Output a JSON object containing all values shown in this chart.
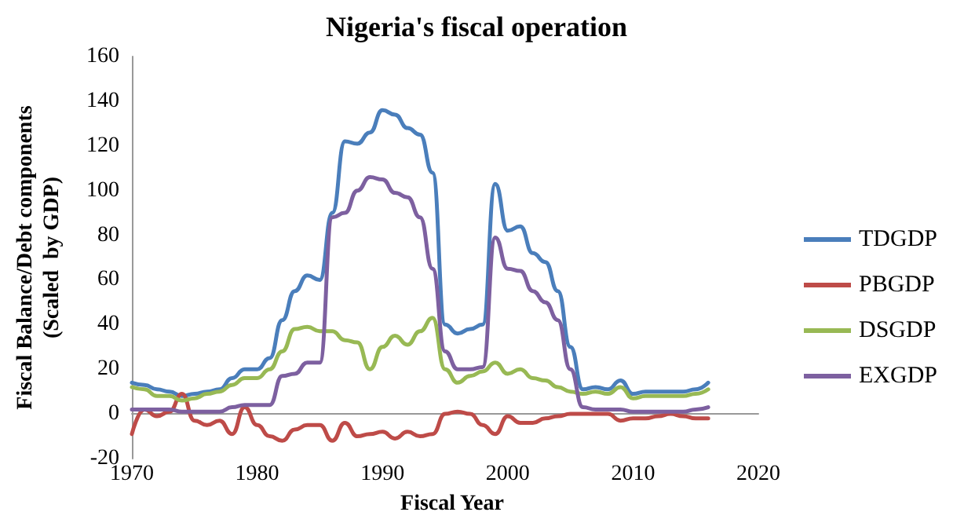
{
  "chart_data": {
    "type": "line",
    "title": "Nigeria's fiscal operation",
    "xlabel": "Fiscal Year",
    "ylabel": "Fiscal Balance/Debt components\n(Scaled  by GDP)",
    "x": [
      1970,
      1971,
      1972,
      1973,
      1974,
      1975,
      1976,
      1977,
      1978,
      1979,
      1980,
      1981,
      1982,
      1983,
      1984,
      1985,
      1986,
      1987,
      1988,
      1989,
      1990,
      1991,
      1992,
      1993,
      1994,
      1995,
      1996,
      1997,
      1998,
      1999,
      2000,
      2001,
      2002,
      2003,
      2004,
      2005,
      2006,
      2007,
      2008,
      2009,
      2010,
      2011,
      2012,
      2013,
      2014,
      2015,
      2016
    ],
    "series": [
      {
        "name": "TDGDP",
        "color": "#4a7ebb",
        "values": [
          14,
          13,
          11,
          10,
          8,
          9,
          10,
          11,
          16,
          20,
          20,
          25,
          42,
          55,
          62,
          60,
          90,
          122,
          121,
          126,
          136,
          134,
          128,
          125,
          108,
          40,
          36,
          38,
          40,
          103,
          82,
          84,
          72,
          68,
          55,
          30,
          11,
          12,
          11,
          15,
          9,
          10,
          10,
          10,
          10,
          11,
          14
        ]
      },
      {
        "name": "PBGDP",
        "color": "#be4b48",
        "values": [
          -9,
          2,
          -1,
          1,
          9,
          -3,
          -5,
          -3,
          -9,
          3,
          -5,
          -10,
          -12,
          -7,
          -5,
          -5,
          -12,
          -4,
          -10,
          -9,
          -8,
          -11,
          -8,
          -10,
          -9,
          0,
          1,
          0,
          -5,
          -9,
          -1,
          -4,
          -4,
          -2,
          -1,
          0,
          0,
          0,
          0,
          -3,
          -2,
          -2,
          -1,
          0,
          -1,
          -2,
          -2
        ]
      },
      {
        "name": "DSGDP",
        "color": "#98b954",
        "values": [
          12,
          11,
          8,
          8,
          6,
          7,
          9,
          10,
          13,
          16,
          16,
          20,
          28,
          38,
          39,
          37,
          37,
          33,
          32,
          20,
          30,
          35,
          31,
          37,
          43,
          20,
          14,
          17,
          19,
          23,
          18,
          20,
          16,
          15,
          12,
          10,
          9,
          10,
          9,
          12,
          7,
          8,
          8,
          8,
          8,
          9,
          11
        ]
      },
      {
        "name": "EXGDP",
        "color": "#7d60a0",
        "values": [
          2,
          2,
          2,
          2,
          1,
          1,
          1,
          1,
          3,
          4,
          4,
          4,
          17,
          18,
          23,
          23,
          88,
          90,
          100,
          106,
          105,
          99,
          97,
          88,
          65,
          28,
          20,
          20,
          21,
          79,
          65,
          64,
          55,
          50,
          42,
          20,
          3,
          2,
          2,
          2,
          1,
          1,
          1,
          1,
          1,
          2,
          3
        ]
      }
    ],
    "xlim": [
      1970,
      2020
    ],
    "xticks": [
      1970,
      1980,
      1990,
      2000,
      2010,
      2020
    ],
    "ylim": [
      -20,
      160
    ],
    "yticks": [
      -20,
      0,
      20,
      40,
      60,
      80,
      100,
      120,
      140,
      160
    ],
    "grid": false,
    "legend": "right",
    "marker": "none",
    "line_style": "solid"
  }
}
